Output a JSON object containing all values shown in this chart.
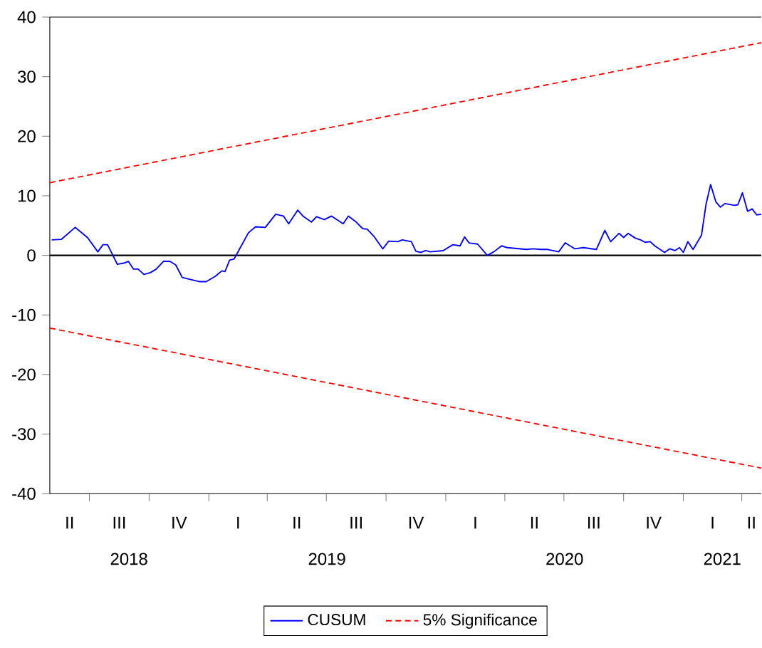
{
  "chart_data": {
    "type": "line",
    "xlim": [
      "2018-05-01",
      "2021-05-01"
    ],
    "ylim": [
      -40,
      40
    ],
    "yticks": [
      -40,
      -30,
      -20,
      -10,
      0,
      10,
      20,
      30,
      40
    ],
    "xticks": [
      {
        "value": "2018-07-01",
        "label": null
      },
      {
        "value": "2018-10-01",
        "label": null
      },
      {
        "value": "2019-01-01",
        "label": null
      },
      {
        "value": "2019-04-01",
        "label": null
      },
      {
        "value": "2019-07-01",
        "label": null
      },
      {
        "value": "2019-10-01",
        "label": null
      },
      {
        "value": "2020-01-01",
        "label": null
      },
      {
        "value": "2020-04-01",
        "label": null
      },
      {
        "value": "2020-07-01",
        "label": null
      },
      {
        "value": "2020-10-01",
        "label": null
      },
      {
        "value": "2021-01-01",
        "label": null
      },
      {
        "value": "2021-04-01",
        "label": null
      },
      {
        "value": "2018-08-31",
        "label": "2018"
      },
      {
        "value": "2019-07-02",
        "label": "2019"
      },
      {
        "value": "2020-07-02",
        "label": "2020"
      },
      {
        "value": "2021-03-02",
        "label": "2021"
      }
    ],
    "annotations": [
      "II",
      "III",
      "IV",
      "I",
      "II",
      "III",
      "IV",
      "I",
      "II",
      "III",
      "IV",
      "I",
      "II"
    ],
    "ref_lines": [
      {
        "axis": "y",
        "value": 0,
        "color": "#000000"
      }
    ],
    "legend": "bottom",
    "marker": "none",
    "series": [
      {
        "name": "CUSUM",
        "color": "#0000ff",
        "line_style": "solid",
        "x": [
          "2018-05-04",
          "2018-05-19",
          "2018-06-09",
          "2018-06-28",
          "2018-07-14",
          "2018-07-22",
          "2018-07-29",
          "2018-08-13",
          "2018-08-23",
          "2018-08-30",
          "2018-09-07",
          "2018-09-14",
          "2018-09-23",
          "2018-10-03",
          "2018-10-12",
          "2018-10-23",
          "2018-11-02",
          "2018-11-11",
          "2018-11-21",
          "2018-12-02",
          "2018-12-17",
          "2018-12-28",
          "2019-01-11",
          "2019-01-21",
          "2019-01-26",
          "2019-02-02",
          "2019-02-09",
          "2019-02-17",
          "2019-03-03",
          "2019-03-14",
          "2019-03-29",
          "2019-04-14",
          "2019-04-26",
          "2019-05-04",
          "2019-05-18",
          "2019-05-26",
          "2019-06-08",
          "2019-06-16",
          "2019-06-28",
          "2019-07-09",
          "2019-07-27",
          "2019-08-04",
          "2019-08-16",
          "2019-08-26",
          "2019-09-02",
          "2019-09-13",
          "2019-09-26",
          "2019-10-05",
          "2019-10-19",
          "2019-10-26",
          "2019-11-09",
          "2019-11-16",
          "2019-11-24",
          "2019-12-01",
          "2019-12-08",
          "2019-12-28",
          "2020-01-12",
          "2020-01-23",
          "2020-01-30",
          "2020-02-06",
          "2020-02-19",
          "2020-03-05",
          "2020-03-15",
          "2020-03-27",
          "2020-04-05",
          "2020-05-04",
          "2020-05-15",
          "2020-05-26",
          "2020-06-06",
          "2020-06-23",
          "2020-07-03",
          "2020-07-18",
          "2020-07-31",
          "2020-08-20",
          "2020-09-02",
          "2020-09-11",
          "2020-09-24",
          "2020-10-01",
          "2020-10-08",
          "2020-10-19",
          "2020-10-27",
          "2020-11-03",
          "2020-11-11",
          "2020-11-18",
          "2020-12-03",
          "2020-12-11",
          "2020-12-19",
          "2020-12-26",
          "2021-01-01",
          "2021-01-08",
          "2021-01-16",
          "2021-01-29",
          "2021-02-05",
          "2021-02-12",
          "2021-02-20",
          "2021-02-27",
          "2021-03-06",
          "2021-03-21",
          "2021-03-26",
          "2021-04-02",
          "2021-04-10",
          "2021-04-17",
          "2021-04-24",
          "2021-05-01"
        ],
        "values": [
          2.6,
          2.7,
          4.7,
          3.0,
          0.6,
          1.8,
          1.8,
          -1.5,
          -1.3,
          -1.0,
          -2.3,
          -2.3,
          -3.2,
          -2.9,
          -2.3,
          -1.0,
          -1.0,
          -1.6,
          -3.7,
          -4.0,
          -4.4,
          -4.4,
          -3.5,
          -2.6,
          -2.7,
          -0.8,
          -0.6,
          1.0,
          3.8,
          4.8,
          4.7,
          6.9,
          6.6,
          5.3,
          7.6,
          6.6,
          5.6,
          6.5,
          6.0,
          6.6,
          5.3,
          6.6,
          5.6,
          4.5,
          4.4,
          3.1,
          1.1,
          2.4,
          2.3,
          2.6,
          2.3,
          0.7,
          0.5,
          0.8,
          0.6,
          0.8,
          1.8,
          1.6,
          3.1,
          2.1,
          1.9,
          0.0,
          0.6,
          1.6,
          1.3,
          1.0,
          1.1,
          1.0,
          1.0,
          0.6,
          2.1,
          1.1,
          1.3,
          1.0,
          4.2,
          2.3,
          3.7,
          3.0,
          3.7,
          2.9,
          2.6,
          2.2,
          2.3,
          1.6,
          0.5,
          1.1,
          0.8,
          1.3,
          0.5,
          2.3,
          1.0,
          3.4,
          8.6,
          11.9,
          9.0,
          8.1,
          8.7,
          8.4,
          8.5,
          10.5,
          7.4,
          7.8,
          6.8,
          6.9
        ]
      },
      {
        "name": "5% Significance",
        "color": "#ff0000",
        "line_style": "dashed",
        "x": [
          "2018-05-01",
          "2021-05-01"
        ],
        "values": [
          12.2,
          35.7
        ]
      },
      {
        "color": "#ff0000",
        "line_style": "dashed",
        "x": [
          "2018-05-01",
          "2021-05-01"
        ],
        "values": [
          -12.2,
          -35.7
        ]
      }
    ]
  }
}
